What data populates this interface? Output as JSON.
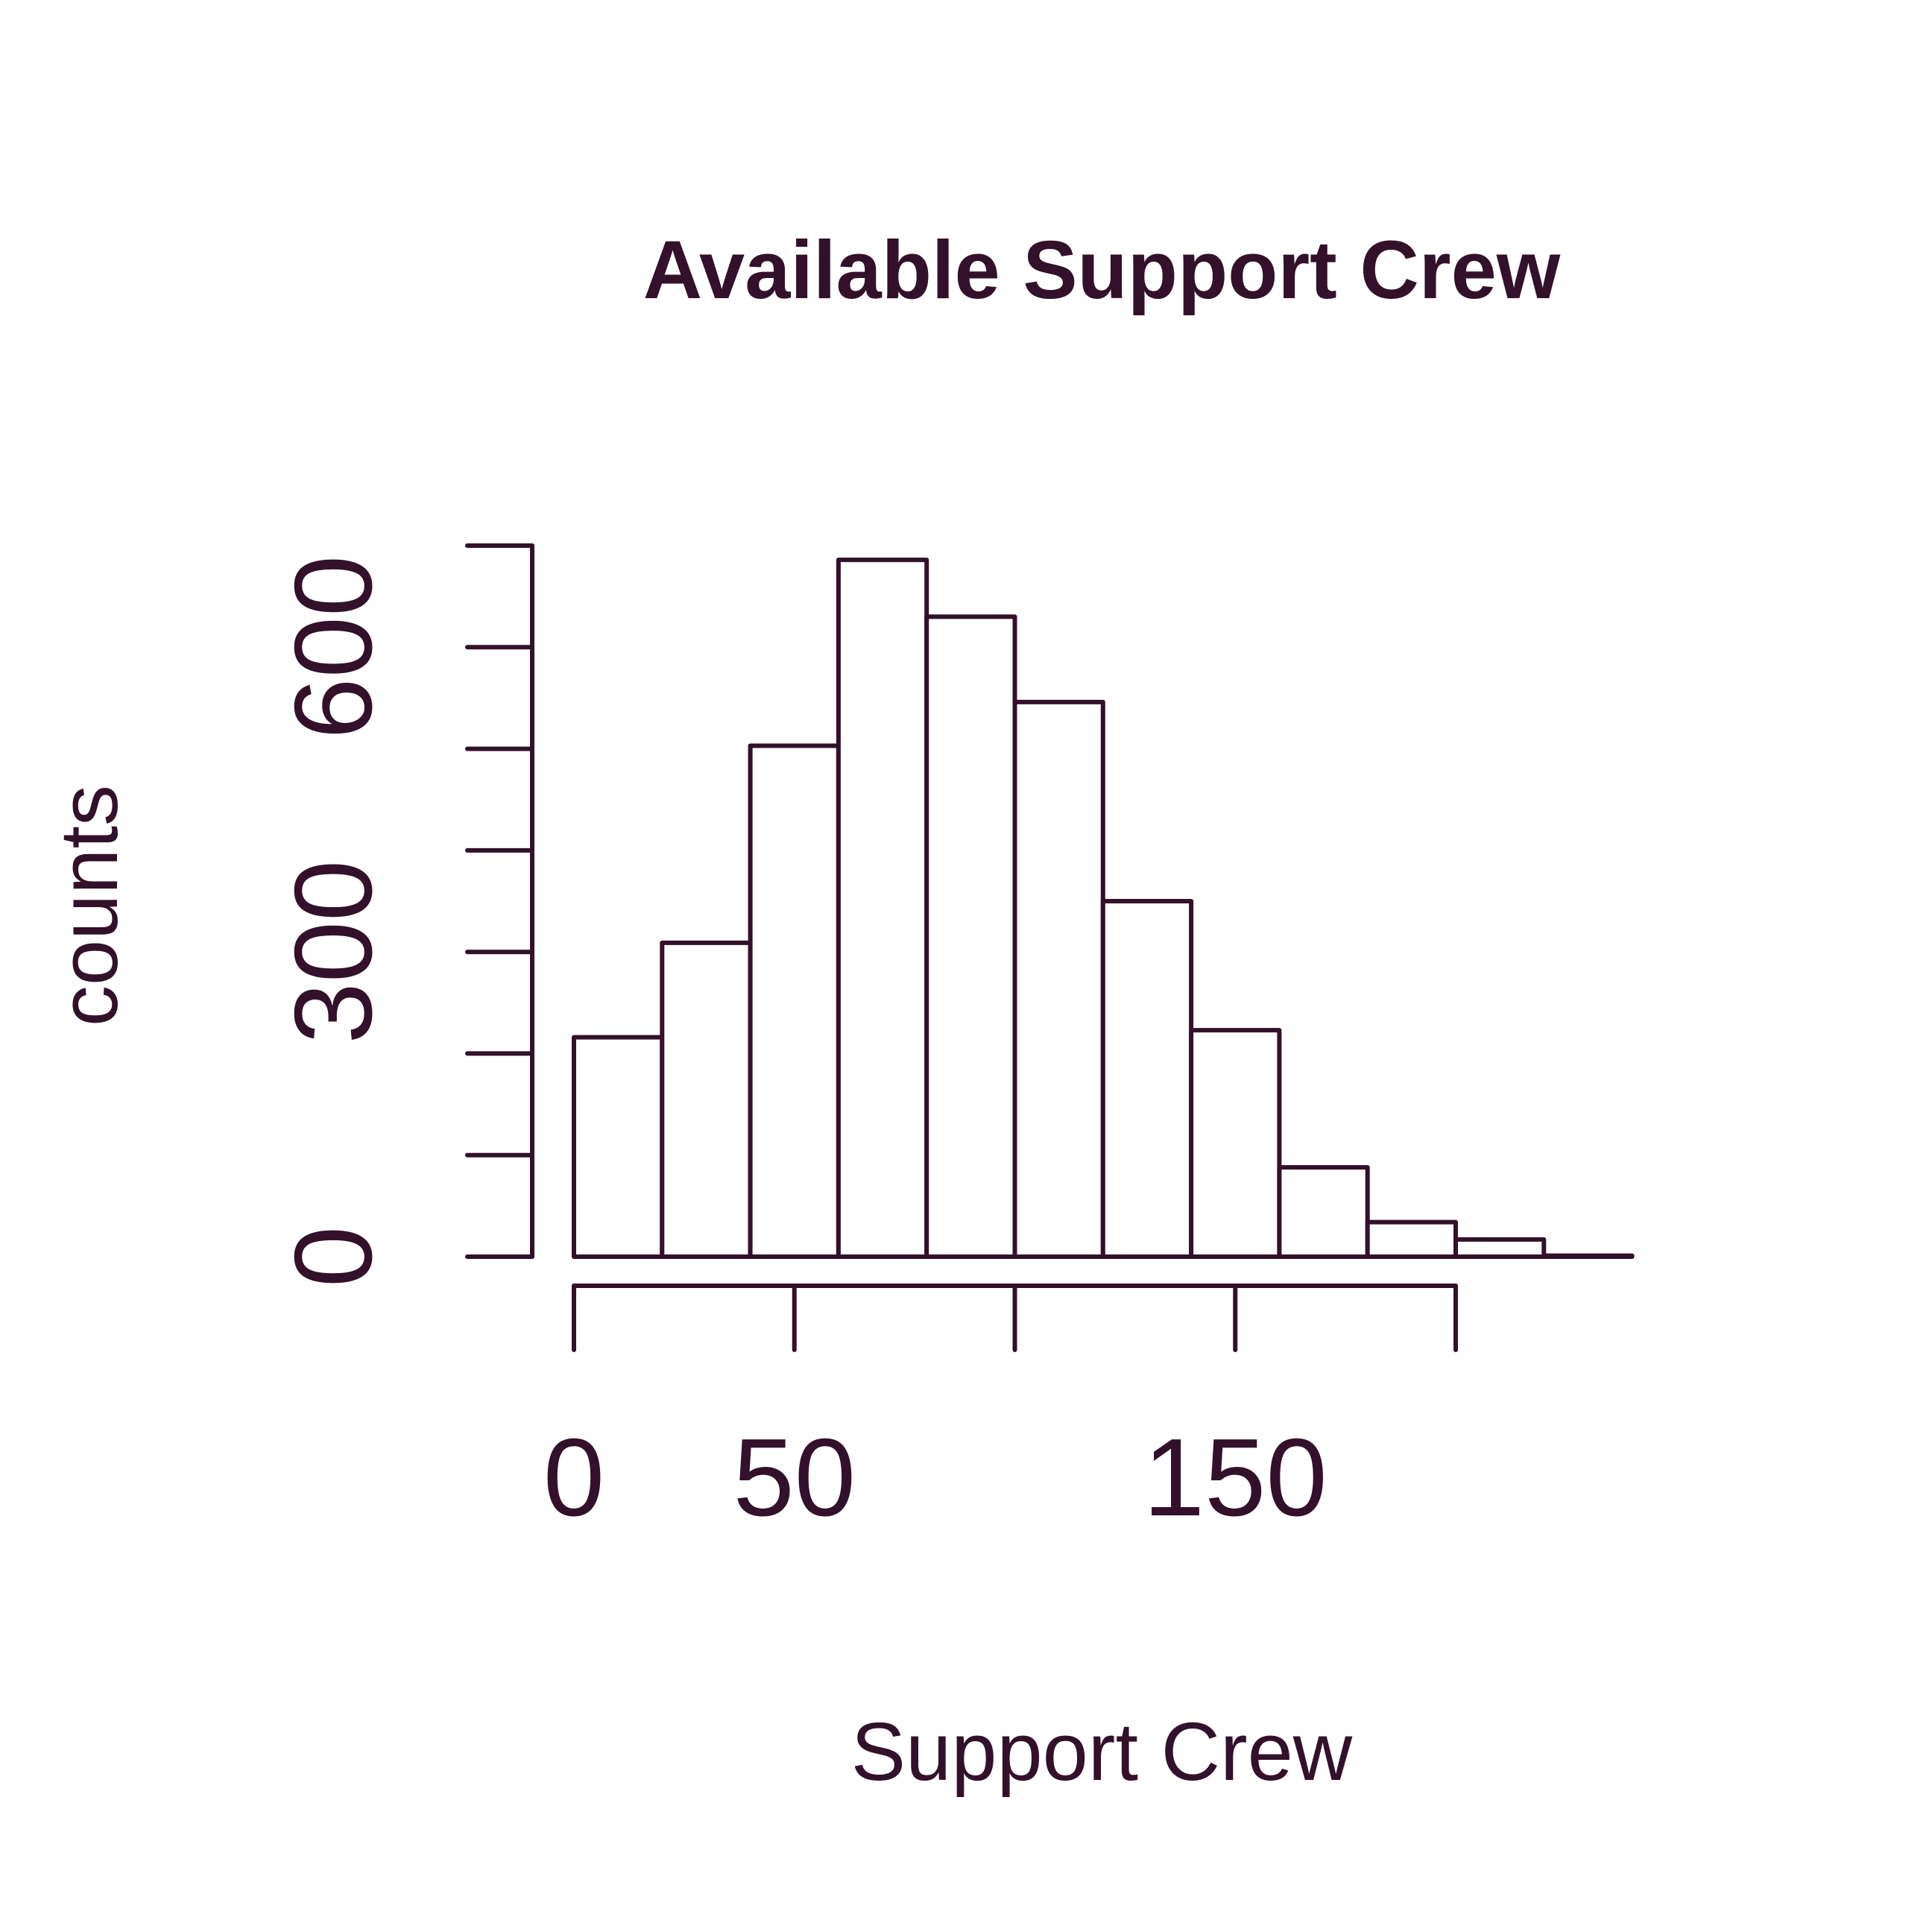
{
  "colors": {
    "ink": "#33112a",
    "background": "#ffffff",
    "bar_fill": "#ffffff"
  },
  "chart_data": {
    "type": "bar",
    "title": "Available Support Crew",
    "xlabel": "Support Crew",
    "ylabel": "counts",
    "bin_width": 20,
    "bins": [
      {
        "start": 0,
        "end": 20,
        "count": 216
      },
      {
        "start": 20,
        "end": 40,
        "count": 309
      },
      {
        "start": 40,
        "end": 60,
        "count": 503
      },
      {
        "start": 60,
        "end": 80,
        "count": 686
      },
      {
        "start": 80,
        "end": 100,
        "count": 630
      },
      {
        "start": 100,
        "end": 120,
        "count": 546
      },
      {
        "start": 120,
        "end": 140,
        "count": 350
      },
      {
        "start": 140,
        "end": 160,
        "count": 223
      },
      {
        "start": 160,
        "end": 180,
        "count": 88
      },
      {
        "start": 180,
        "end": 200,
        "count": 34
      },
      {
        "start": 200,
        "end": 220,
        "count": 17
      },
      {
        "start": 220,
        "end": 240,
        "count": 1
      }
    ],
    "x_axis": {
      "range": [
        0,
        200
      ],
      "ticks": [
        0,
        50,
        100,
        150,
        200
      ],
      "tick_labels": [
        "0",
        "50",
        "",
        "150",
        ""
      ]
    },
    "y_axis": {
      "range": [
        0,
        700
      ],
      "ticks": [
        0,
        100,
        200,
        300,
        400,
        500,
        600,
        700
      ],
      "tick_labels": [
        "0",
        "",
        "",
        "300",
        "",
        "",
        "600",
        ""
      ]
    },
    "grid": false,
    "legend": "none"
  }
}
